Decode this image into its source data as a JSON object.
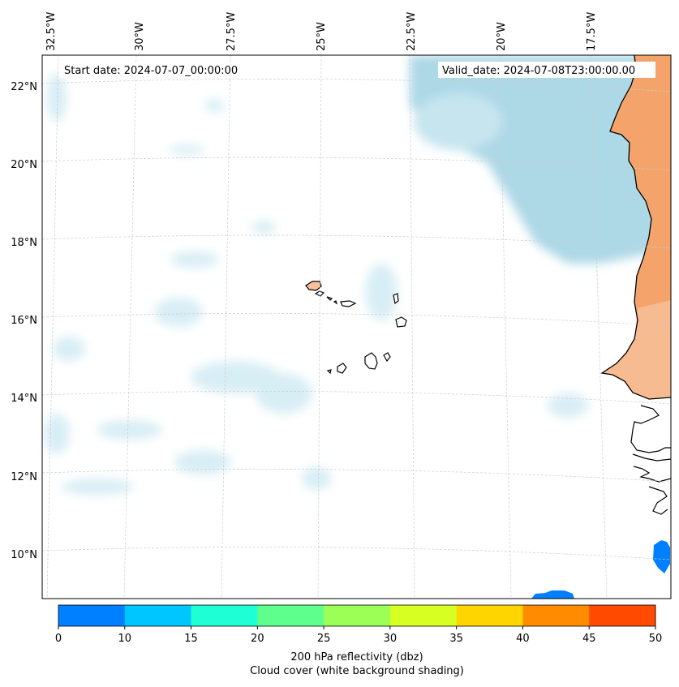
{
  "map": {
    "start_date_label": "Start date: 2024-07-07_00:00:00",
    "valid_date_label": "Valid_date: 2024-07-08T23:00:00.00",
    "lon_labels": [
      "32.5°W",
      "30°W",
      "27.5°W",
      "25°W",
      "22.5°W",
      "20°W",
      "17.5°W"
    ],
    "lat_labels": [
      "22°N",
      "20°N",
      "18°N",
      "16°N",
      "14°N",
      "12°N",
      "10°N"
    ],
    "colors": {
      "land": "#f4a46b",
      "land_light": "#f8c19b",
      "cloud": "#add8e6",
      "cloud_light": "#d8eef5",
      "gridline": "#cccccc",
      "coastline": "#000000",
      "reflectivity_blue": "#0080ff"
    }
  },
  "colorbar": {
    "ticks": [
      "0",
      "10",
      "15",
      "20",
      "25",
      "30",
      "35",
      "40",
      "45",
      "50"
    ],
    "colors": [
      "#0080ff",
      "#00c6ff",
      "#1fffd5",
      "#5fff8d",
      "#9cff55",
      "#d8ff22",
      "#ffd500",
      "#ff8c00",
      "#ff4a00"
    ],
    "label_line1": "200 hPa reflectivity (dbz)",
    "label_line2": "Cloud cover (white background shading)"
  }
}
